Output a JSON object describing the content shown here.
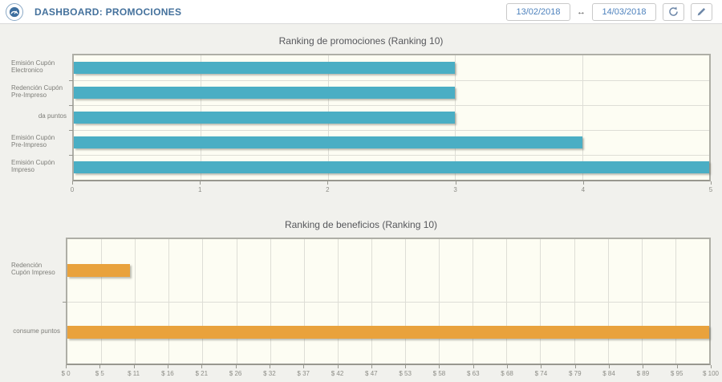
{
  "header": {
    "title": "DASHBOARD: PROMOCIONES",
    "date_from": "13/02/2018",
    "date_to": "14/03/2018",
    "icons": {
      "logo": "gauge-dashboard-icon",
      "range_arrow": "↔",
      "refresh": "refresh-icon",
      "edit": "pencil-icon"
    },
    "accent_color": "#44719c",
    "date_text_color": "#4e82bd"
  },
  "chart_data": [
    {
      "type": "bar",
      "orientation": "horizontal",
      "title": "Ranking de promociones (Ranking 10)",
      "categories": [
        "Emisión Cupón Electronico",
        "Redención Cupón Pre-Impreso",
        "da puntos",
        "Emisión Cupón Pre-Impreso",
        "Emisión Cupón Impreso"
      ],
      "values": [
        3,
        3,
        3,
        4,
        5
      ],
      "xlim": [
        0,
        5
      ],
      "x_ticks": [
        "0",
        "1",
        "2",
        "3",
        "4",
        "5"
      ],
      "bar_color": "#4aaec4",
      "plot_bg": "#fdfdf3",
      "grid": true,
      "legend": false
    },
    {
      "type": "bar",
      "orientation": "horizontal",
      "title": "Ranking de beneficios (Ranking 10)",
      "categories": [
        "Redención Cupón Impreso",
        "consume puntos"
      ],
      "values": [
        9.7,
        100
      ],
      "xlim": [
        0,
        100
      ],
      "x_ticks": [
        "$ 0",
        "$ 5",
        "$ 11",
        "$ 16",
        "$ 21",
        "$ 26",
        "$ 32",
        "$ 37",
        "$ 42",
        "$ 47",
        "$ 53",
        "$ 58",
        "$ 63",
        "$ 68",
        "$ 74",
        "$ 79",
        "$ 84",
        "$ 89",
        "$ 95",
        "$ 100"
      ],
      "bar_color": "#e9a23c",
      "plot_bg": "#fdfdf3",
      "grid": true,
      "legend": false
    }
  ]
}
